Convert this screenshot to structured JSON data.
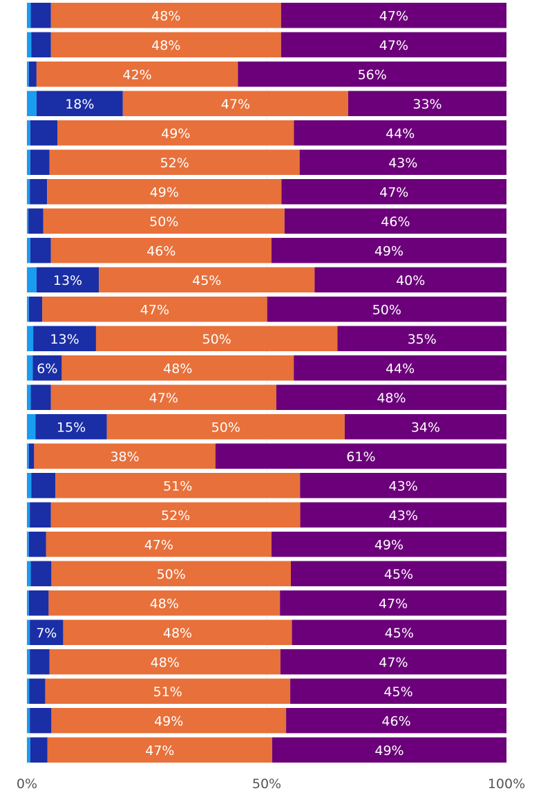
{
  "chart_data": {
    "type": "bar",
    "orientation": "horizontal",
    "stacked": "100%",
    "xlim": [
      0,
      100
    ],
    "x_ticks": [
      "0%",
      "50%",
      "100%"
    ],
    "series": [
      {
        "color": "#1a9cf0",
        "values": [
          0.8,
          0.9,
          0.4,
          2.0,
          0.7,
          0.7,
          0.6,
          0.3,
          0.7,
          2.0,
          0.4,
          1.3,
          1.2,
          0.8,
          1.8,
          0.4,
          0.9,
          0.6,
          0.4,
          0.8,
          0.4,
          0.6,
          0.6,
          0.5,
          0.6,
          0.7
        ]
      },
      {
        "color": "#1a2ea6",
        "values": [
          4.2,
          4.1,
          1.6,
          18,
          5.6,
          4.0,
          3.6,
          3.1,
          4.3,
          13,
          2.8,
          13,
          6,
          4.2,
          15,
          1.1,
          5.0,
          4.4,
          3.6,
          4.3,
          4.1,
          7,
          4.1,
          3.3,
          4.5,
          3.6
        ]
      },
      {
        "color": "#e8703a",
        "values": [
          48,
          48,
          42,
          47,
          49,
          52,
          49,
          50,
          46,
          45,
          47,
          50,
          48,
          47,
          50,
          38,
          51,
          52,
          47,
          50,
          48,
          48,
          48,
          51,
          49,
          47
        ]
      },
      {
        "color": "#6b007a",
        "values": [
          47,
          47,
          56,
          33,
          44,
          43,
          47,
          46,
          49,
          40,
          50,
          35,
          44,
          48,
          34,
          61,
          43,
          43,
          49,
          45,
          47,
          45,
          47,
          45,
          46,
          49
        ]
      }
    ],
    "labels": [
      [
        "",
        "",
        "48%",
        "47%"
      ],
      [
        "",
        "",
        "48%",
        "47%"
      ],
      [
        "",
        "",
        "42%",
        "56%"
      ],
      [
        "",
        "18%",
        "47%",
        "33%"
      ],
      [
        "",
        "",
        "49%",
        "44%"
      ],
      [
        "",
        "",
        "52%",
        "43%"
      ],
      [
        "",
        "",
        "49%",
        "47%"
      ],
      [
        "",
        "",
        "50%",
        "46%"
      ],
      [
        "",
        "",
        "46%",
        "49%"
      ],
      [
        "",
        "13%",
        "45%",
        "40%"
      ],
      [
        "",
        "",
        "47%",
        "50%"
      ],
      [
        "",
        "13%",
        "50%",
        "35%"
      ],
      [
        "",
        "6%",
        "48%",
        "44%"
      ],
      [
        "",
        "",
        "47%",
        "48%"
      ],
      [
        "",
        "15%",
        "50%",
        "34%"
      ],
      [
        "",
        "",
        "38%",
        "61%"
      ],
      [
        "",
        "",
        "51%",
        "43%"
      ],
      [
        "",
        "",
        "52%",
        "43%"
      ],
      [
        "",
        "",
        "47%",
        "49%"
      ],
      [
        "",
        "",
        "50%",
        "45%"
      ],
      [
        "",
        "",
        "48%",
        "47%"
      ],
      [
        "",
        "7%",
        "48%",
        "45%"
      ],
      [
        "",
        "",
        "48%",
        "47%"
      ],
      [
        "",
        "",
        "51%",
        "45%"
      ],
      [
        "",
        "",
        "49%",
        "46%"
      ],
      [
        "",
        "",
        "47%",
        "49%"
      ]
    ],
    "grid": true,
    "legend": "none"
  }
}
